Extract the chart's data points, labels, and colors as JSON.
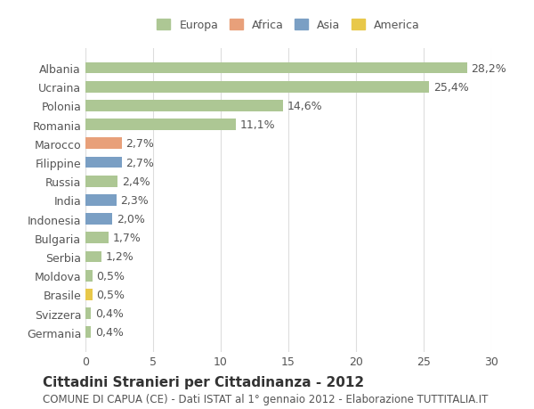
{
  "countries": [
    "Albania",
    "Ucraina",
    "Polonia",
    "Romania",
    "Marocco",
    "Filippine",
    "Russia",
    "India",
    "Indonesia",
    "Bulgaria",
    "Serbia",
    "Moldova",
    "Brasile",
    "Svizzera",
    "Germania"
  ],
  "values": [
    28.2,
    25.4,
    14.6,
    11.1,
    2.7,
    2.7,
    2.4,
    2.3,
    2.0,
    1.7,
    1.2,
    0.5,
    0.5,
    0.4,
    0.4
  ],
  "labels": [
    "28,2%",
    "25,4%",
    "14,6%",
    "11,1%",
    "2,7%",
    "2,7%",
    "2,4%",
    "2,3%",
    "2,0%",
    "1,7%",
    "1,2%",
    "0,5%",
    "0,5%",
    "0,4%",
    "0,4%"
  ],
  "colors": [
    "#adc794",
    "#adc794",
    "#adc794",
    "#adc794",
    "#e8a07a",
    "#7a9fc4",
    "#adc794",
    "#7a9fc4",
    "#7a9fc4",
    "#adc794",
    "#adc794",
    "#adc794",
    "#e8c84a",
    "#adc794",
    "#adc794"
  ],
  "continent": [
    "Europa",
    "Europa",
    "Europa",
    "Europa",
    "Africa",
    "Asia",
    "Europa",
    "Asia",
    "Asia",
    "Europa",
    "Europa",
    "Europa",
    "America",
    "Europa",
    "Europa"
  ],
  "legend_labels": [
    "Europa",
    "Africa",
    "Asia",
    "America"
  ],
  "legend_colors": [
    "#adc794",
    "#e8a07a",
    "#7a9fc4",
    "#e8c84a"
  ],
  "title": "Cittadini Stranieri per Cittadinanza - 2012",
  "subtitle": "COMUNE DI CAPUA (CE) - Dati ISTAT al 1° gennaio 2012 - Elaborazione TUTTITALIA.IT",
  "xlim": [
    0,
    30
  ],
  "xticks": [
    0,
    5,
    10,
    15,
    20,
    25,
    30
  ],
  "bg_color": "#ffffff",
  "grid_color": "#dddddd",
  "bar_height": 0.6,
  "label_fontsize": 9,
  "tick_fontsize": 9,
  "title_fontsize": 11,
  "subtitle_fontsize": 8.5
}
